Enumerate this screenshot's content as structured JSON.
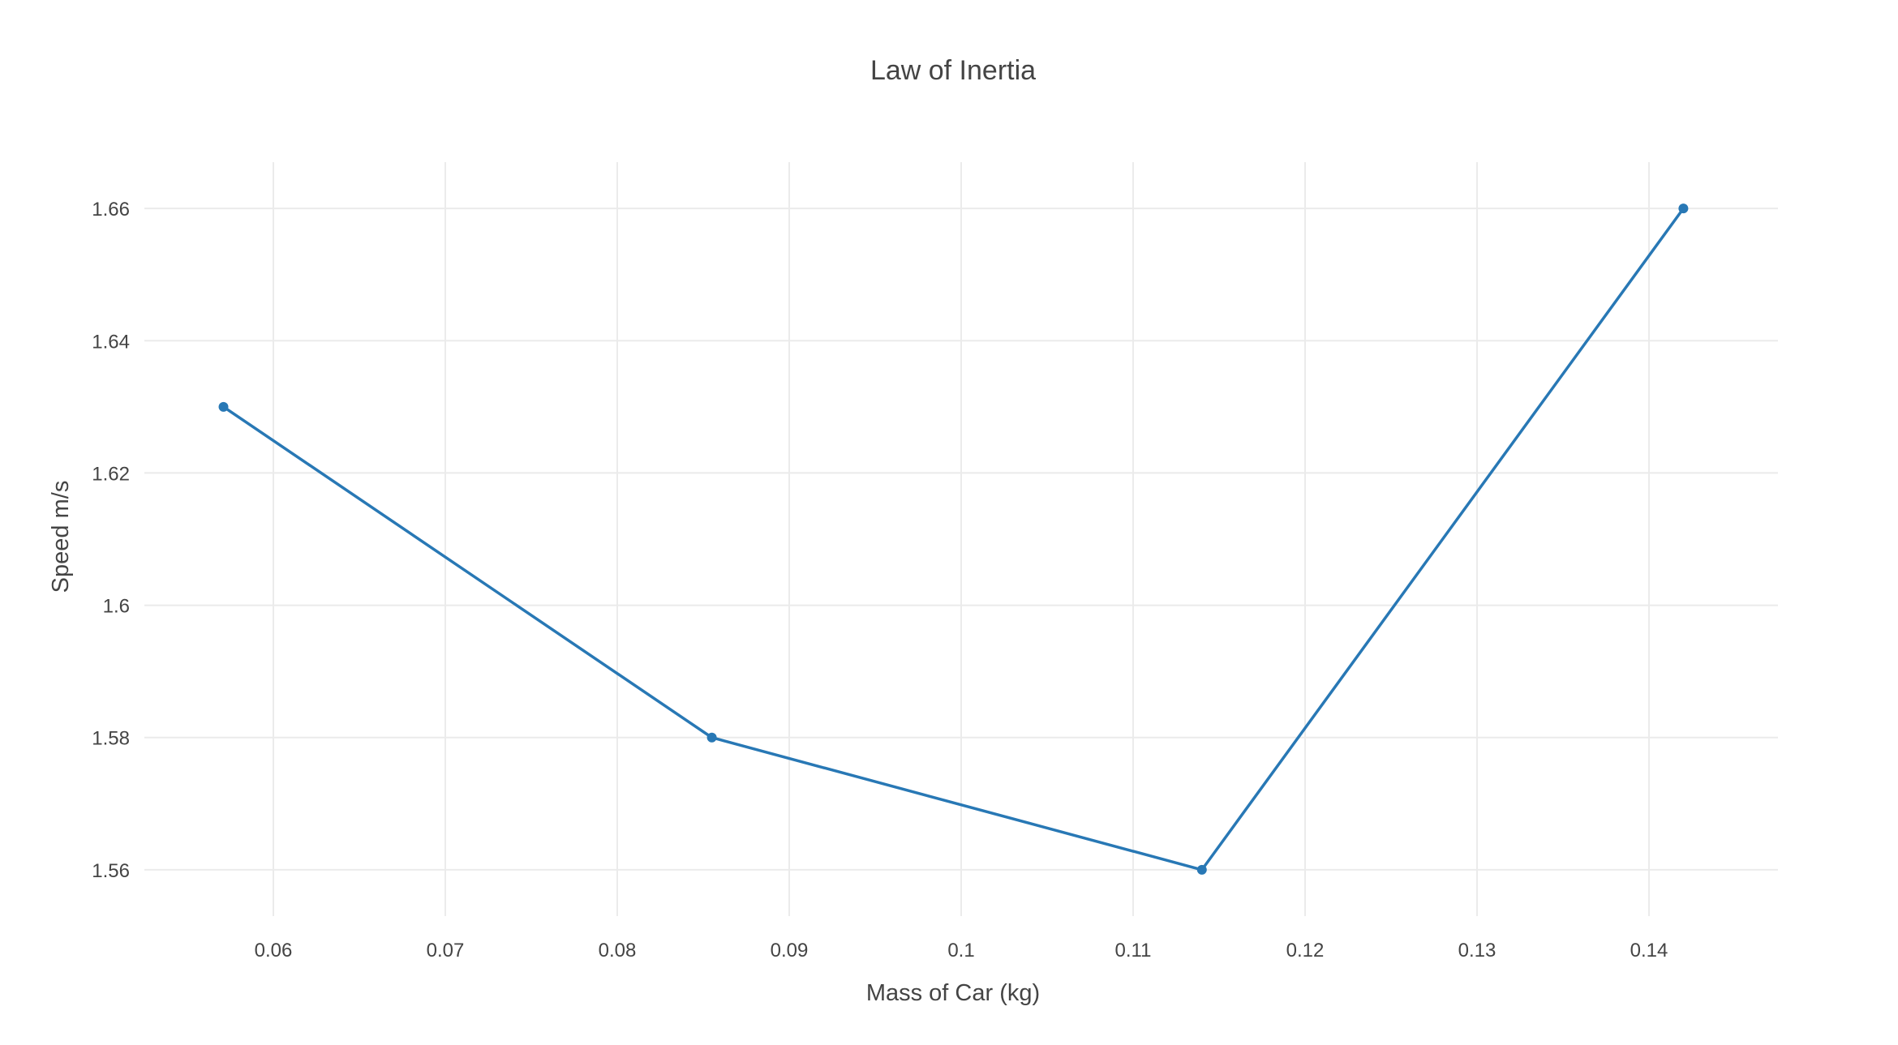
{
  "chart_data": {
    "type": "line",
    "title": "Law of Inertia",
    "xlabel": "Mass of Car (kg)",
    "ylabel": "Speed m/s",
    "x": [
      0.0571,
      0.0855,
      0.114,
      0.142
    ],
    "series": [
      {
        "values": [
          1.63,
          1.58,
          1.56,
          1.66
        ],
        "color": "#2878b5"
      }
    ],
    "xlim": [
      0.0525,
      0.1475
    ],
    "ylim": [
      1.553,
      1.667
    ],
    "xticks": [
      0.06,
      0.07,
      0.08,
      0.09,
      0.1,
      0.11,
      0.12,
      0.13,
      0.14
    ],
    "xtick_labels": [
      "0.06",
      "0.07",
      "0.08",
      "0.09",
      "0.1",
      "0.11",
      "0.12",
      "0.13",
      "0.14"
    ],
    "yticks": [
      1.56,
      1.58,
      1.6,
      1.62,
      1.64,
      1.66
    ],
    "ytick_labels": [
      "1.56",
      "1.58",
      "1.6",
      "1.62",
      "1.64",
      "1.66"
    ],
    "grid": true,
    "legend": false,
    "markers": true
  }
}
